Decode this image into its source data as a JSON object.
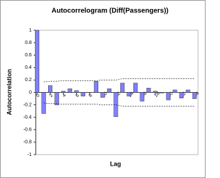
{
  "chart_data": {
    "type": "bar",
    "title": "Autocorrelogram (Diff(Passengers))",
    "x_label": "Lag",
    "y_label": "Autocorrelation",
    "x": [
      0,
      1,
      2,
      3,
      4,
      5,
      6,
      7,
      8,
      9,
      10,
      11,
      12,
      13,
      14,
      15,
      16,
      17,
      18,
      19,
      20,
      21,
      22,
      23,
      24
    ],
    "values": [
      1,
      -0.34,
      0.11,
      -0.2,
      0.02,
      0.06,
      0.03,
      -0.06,
      0,
      0.18,
      -0.08,
      0.06,
      -0.39,
      0.15,
      -0.06,
      0.15,
      -0.14,
      0.07,
      0.02,
      -0.01,
      -0.12,
      0.04,
      -0.09,
      0.04,
      -0.1
    ],
    "upper_band": [
      null,
      0.17,
      0.18,
      0.18,
      0.19,
      0.19,
      0.19,
      0.19,
      0.19,
      0.19,
      0.2,
      0.2,
      0.2,
      0.22,
      0.22,
      0.22,
      0.22,
      0.22,
      0.22,
      0.22,
      0.22,
      0.22,
      0.22,
      0.22,
      0.22
    ],
    "lower_band": [
      null,
      -0.17,
      -0.18,
      -0.18,
      -0.19,
      -0.19,
      -0.19,
      -0.19,
      -0.19,
      -0.19,
      -0.2,
      -0.2,
      -0.2,
      -0.22,
      -0.22,
      -0.22,
      -0.22,
      -0.22,
      -0.22,
      -0.22,
      -0.22,
      -0.22,
      -0.22,
      -0.22,
      -0.22
    ],
    "color": "#8080ff",
    "xlim": [
      0,
      24
    ],
    "xticks": [
      0,
      2,
      4,
      6,
      8,
      10,
      12,
      14,
      16,
      18,
      20,
      22,
      24
    ],
    "ylim": [
      -1,
      1
    ],
    "yticks": [
      -1,
      -0.8,
      -0.6,
      -0.4,
      -0.2,
      0,
      0.2,
      0.4,
      0.6,
      0.8,
      1
    ]
  }
}
